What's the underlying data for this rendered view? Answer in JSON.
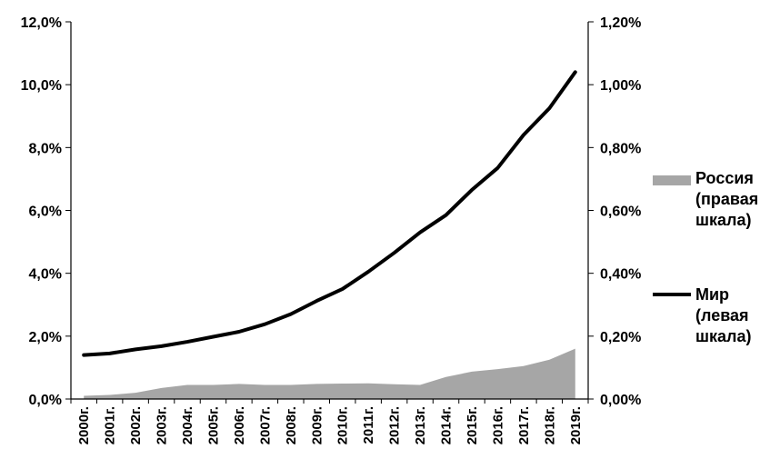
{
  "chart_data": {
    "type": "line+area",
    "categories": [
      "2000г.",
      "2001г.",
      "2002г.",
      "2003г.",
      "2004г.",
      "2005г.",
      "2006г.",
      "2007г.",
      "2008г.",
      "2009г.",
      "2010г.",
      "2011г.",
      "2012г.",
      "2013г.",
      "2014г.",
      "2015г.",
      "2016г.",
      "2017г.",
      "2018г.",
      "2019г."
    ],
    "left_axis": {
      "ylim": [
        0,
        12
      ],
      "ticks": [
        "0,0%",
        "2,0%",
        "4,0%",
        "6,0%",
        "8,0%",
        "10,0%",
        "12,0%"
      ]
    },
    "right_axis": {
      "ylim": [
        0,
        1.2
      ],
      "ticks": [
        "0,00%",
        "0,20%",
        "0,40%",
        "0,60%",
        "0,80%",
        "1,00%",
        "1,20%"
      ]
    },
    "series": [
      {
        "name": "Россия",
        "axis": "right",
        "kind": "area",
        "color": "#a6a6a6",
        "values": [
          0.01,
          0.013,
          0.02,
          0.035,
          0.045,
          0.045,
          0.048,
          0.045,
          0.045,
          0.048,
          0.049,
          0.05,
          0.047,
          0.045,
          0.07,
          0.087,
          0.095,
          0.105,
          0.125,
          0.16
        ],
        "legend_lines": [
          "Россия",
          "(правая",
          "шкала)"
        ]
      },
      {
        "name": "Мир",
        "axis": "left",
        "kind": "line",
        "color": "#000000",
        "values": [
          1.4,
          1.45,
          1.58,
          1.68,
          1.82,
          1.98,
          2.14,
          2.38,
          2.7,
          3.12,
          3.5,
          4.05,
          4.65,
          5.3,
          5.85,
          6.65,
          7.35,
          8.4,
          9.25,
          10.4
        ],
        "legend_lines": [
          "Мир",
          "(левая",
          "шкала)"
        ]
      }
    ]
  }
}
